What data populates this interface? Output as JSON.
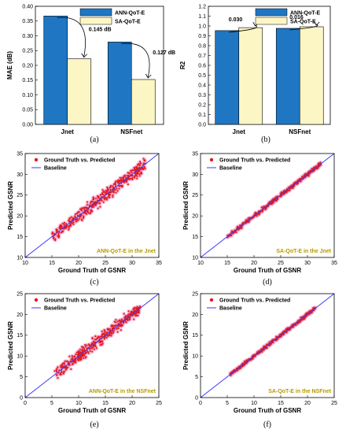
{
  "colors": {
    "ann": "#1f77c4",
    "sa": "#fbf6c4",
    "point": "#e31a1c",
    "halo": "#f2a0c8",
    "baseline": "#3a3aff",
    "inset_title": "#b59a00"
  },
  "chart_data": [
    {
      "type": "bar",
      "panel": "(a)",
      "categories": [
        "Jnet",
        "NSFnet"
      ],
      "series": [
        {
          "name": "ANN-QoT-E",
          "values": [
            0.367,
            0.279
          ]
        },
        {
          "name": "SA-QoT-E",
          "values": [
            0.222,
            0.152
          ]
        }
      ],
      "ylabel": "MAE (dB)",
      "ylim": [
        0.0,
        0.4
      ],
      "yticks": [
        "0.00",
        "0.05",
        "0.10",
        "0.15",
        "0.20",
        "0.25",
        "0.30",
        "0.35",
        "0.40"
      ],
      "annotations": [
        "0.145 dB",
        "0.127 dB"
      ],
      "legend": "top-right"
    },
    {
      "type": "bar",
      "panel": "(b)",
      "categories": [
        "Jnet",
        "NSFnet"
      ],
      "series": [
        {
          "name": "ANN-QoT-E",
          "values": [
            0.953,
            0.976
          ]
        },
        {
          "name": "SA-QoT-E",
          "values": [
            0.983,
            0.992
          ]
        }
      ],
      "ylabel": "R2",
      "ylim": [
        0.0,
        1.2
      ],
      "yticks": [
        "0.0",
        "0.1",
        "0.2",
        "0.3",
        "0.4",
        "0.5",
        "0.6",
        "0.7",
        "0.8",
        "0.9",
        "1.0",
        "1.1",
        "1.2"
      ],
      "annotations": [
        "0.030",
        "0.016"
      ],
      "legend": "top-right"
    },
    {
      "type": "scatter",
      "panel": "(c)",
      "inset_title": "ANN-QoT-E in the Jnet",
      "xlabel": "Ground Truth of GSNR",
      "ylabel": "Predicted GSNR",
      "xlim": [
        10,
        35
      ],
      "ylim": [
        10,
        35
      ],
      "xticks": [
        "10",
        "15",
        "20",
        "25",
        "30",
        "35"
      ],
      "yticks": [
        "10",
        "15",
        "20",
        "25",
        "30",
        "35"
      ],
      "series": [
        {
          "name": "Ground Truth vs. Predicted",
          "x_range": [
            15,
            32.5
          ],
          "spread": 1.1
        },
        {
          "name": "Baseline",
          "line": [
            [
              10,
              10
            ],
            [
              35,
              35
            ]
          ]
        }
      ],
      "legend": "top-left"
    },
    {
      "type": "scatter",
      "panel": "(d)",
      "inset_title": "SA-QoT-E in the Jnet",
      "xlabel": "Ground Truth of GSNR",
      "ylabel": "Predicted GSNR",
      "xlim": [
        10,
        35
      ],
      "ylim": [
        10,
        35
      ],
      "xticks": [
        "10",
        "15",
        "20",
        "25",
        "30",
        "35"
      ],
      "yticks": [
        "10",
        "15",
        "20",
        "25",
        "30",
        "35"
      ],
      "series": [
        {
          "name": "Ground Truth vs. Predicted",
          "x_range": [
            15,
            32.5
          ],
          "spread": 0.35
        },
        {
          "name": "Baseline",
          "line": [
            [
              10,
              10
            ],
            [
              35,
              35
            ]
          ]
        }
      ],
      "legend": "top-left"
    },
    {
      "type": "scatter",
      "panel": "(e)",
      "inset_title": "ANN-QoT-E in the NSFnet",
      "xlabel": "Ground Truth of GSNR",
      "ylabel": "Predicted GSNR",
      "xlim": [
        0,
        25
      ],
      "ylim": [
        0,
        25
      ],
      "xticks": [
        "0",
        "5",
        "10",
        "15",
        "20",
        "25"
      ],
      "yticks": [
        "0",
        "5",
        "10",
        "15",
        "20",
        "25"
      ],
      "series": [
        {
          "name": "Ground Truth vs. Predicted",
          "x_range": [
            5.5,
            21.5
          ],
          "spread": 1.0
        },
        {
          "name": "Baseline",
          "line": [
            [
              0,
              0
            ],
            [
              25,
              25
            ]
          ]
        }
      ],
      "legend": "top-left"
    },
    {
      "type": "scatter",
      "panel": "(f)",
      "inset_title": "SA-QoT-E in the NSFnet",
      "xlabel": "Ground Truth of GSNR",
      "ylabel": "Predicted GSNR",
      "xlim": [
        0,
        25
      ],
      "ylim": [
        0,
        25
      ],
      "xticks": [
        "0",
        "5",
        "10",
        "15",
        "20",
        "25"
      ],
      "yticks": [
        "0",
        "5",
        "10",
        "15",
        "20",
        "25"
      ],
      "series": [
        {
          "name": "Ground Truth vs. Predicted",
          "x_range": [
            5.5,
            21.5
          ],
          "spread": 0.3
        },
        {
          "name": "Baseline",
          "line": [
            [
              0,
              0
            ],
            [
              25,
              25
            ]
          ]
        }
      ],
      "legend": "top-left"
    }
  ]
}
